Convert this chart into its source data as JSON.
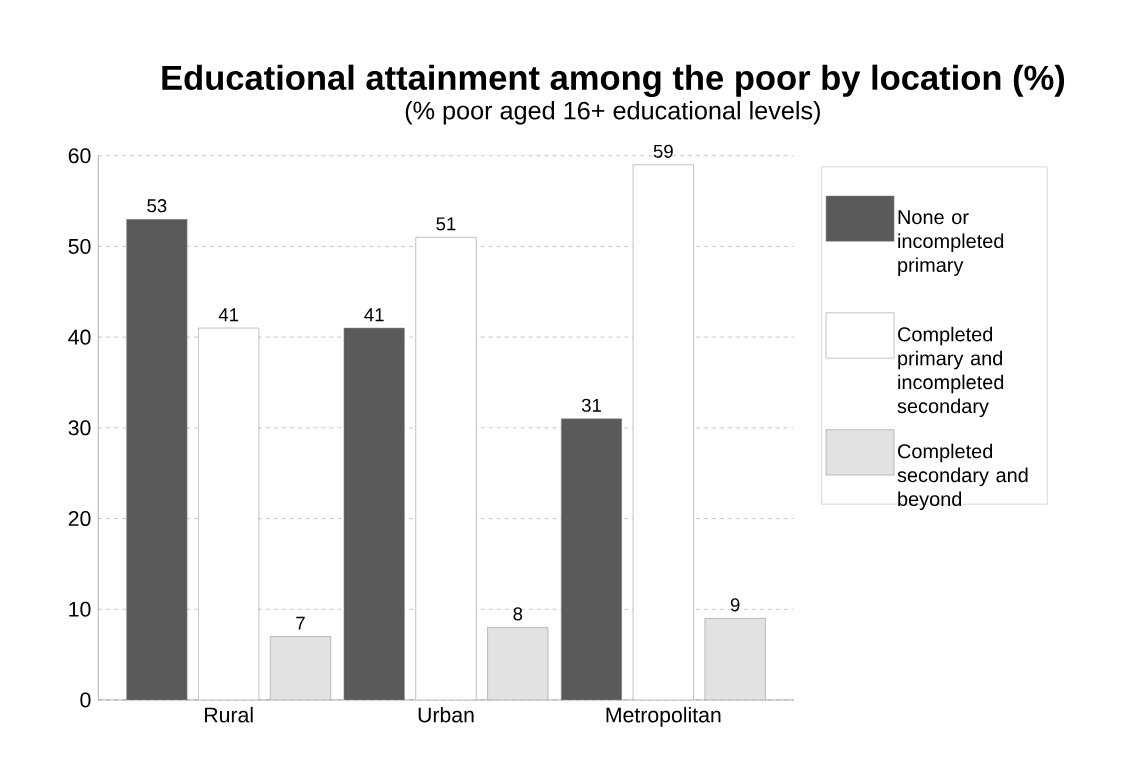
{
  "chart_data": {
    "type": "bar",
    "title": "Educational attainment among the poor by location (%)",
    "subtitle": "(% poor aged 16+ educational levels)",
    "categories": [
      "Rural",
      "Urban",
      "Metropolitan"
    ],
    "series": [
      {
        "name": "None or incompleted primary",
        "color": "#5a5a5a",
        "values": [
          53,
          41,
          31
        ]
      },
      {
        "name": "Completed primary and incompleted secondary",
        "color": "#ffffff",
        "values": [
          41,
          51,
          59
        ]
      },
      {
        "name": "Completed secondary and beyond",
        "color": "#e2e2e2",
        "values": [
          7,
          8,
          9
        ]
      }
    ],
    "ylim": [
      0,
      60
    ],
    "yticks": [
      0,
      10,
      20,
      30,
      40,
      50,
      60
    ],
    "grid": "y",
    "legend": "right",
    "data_labels": true
  }
}
